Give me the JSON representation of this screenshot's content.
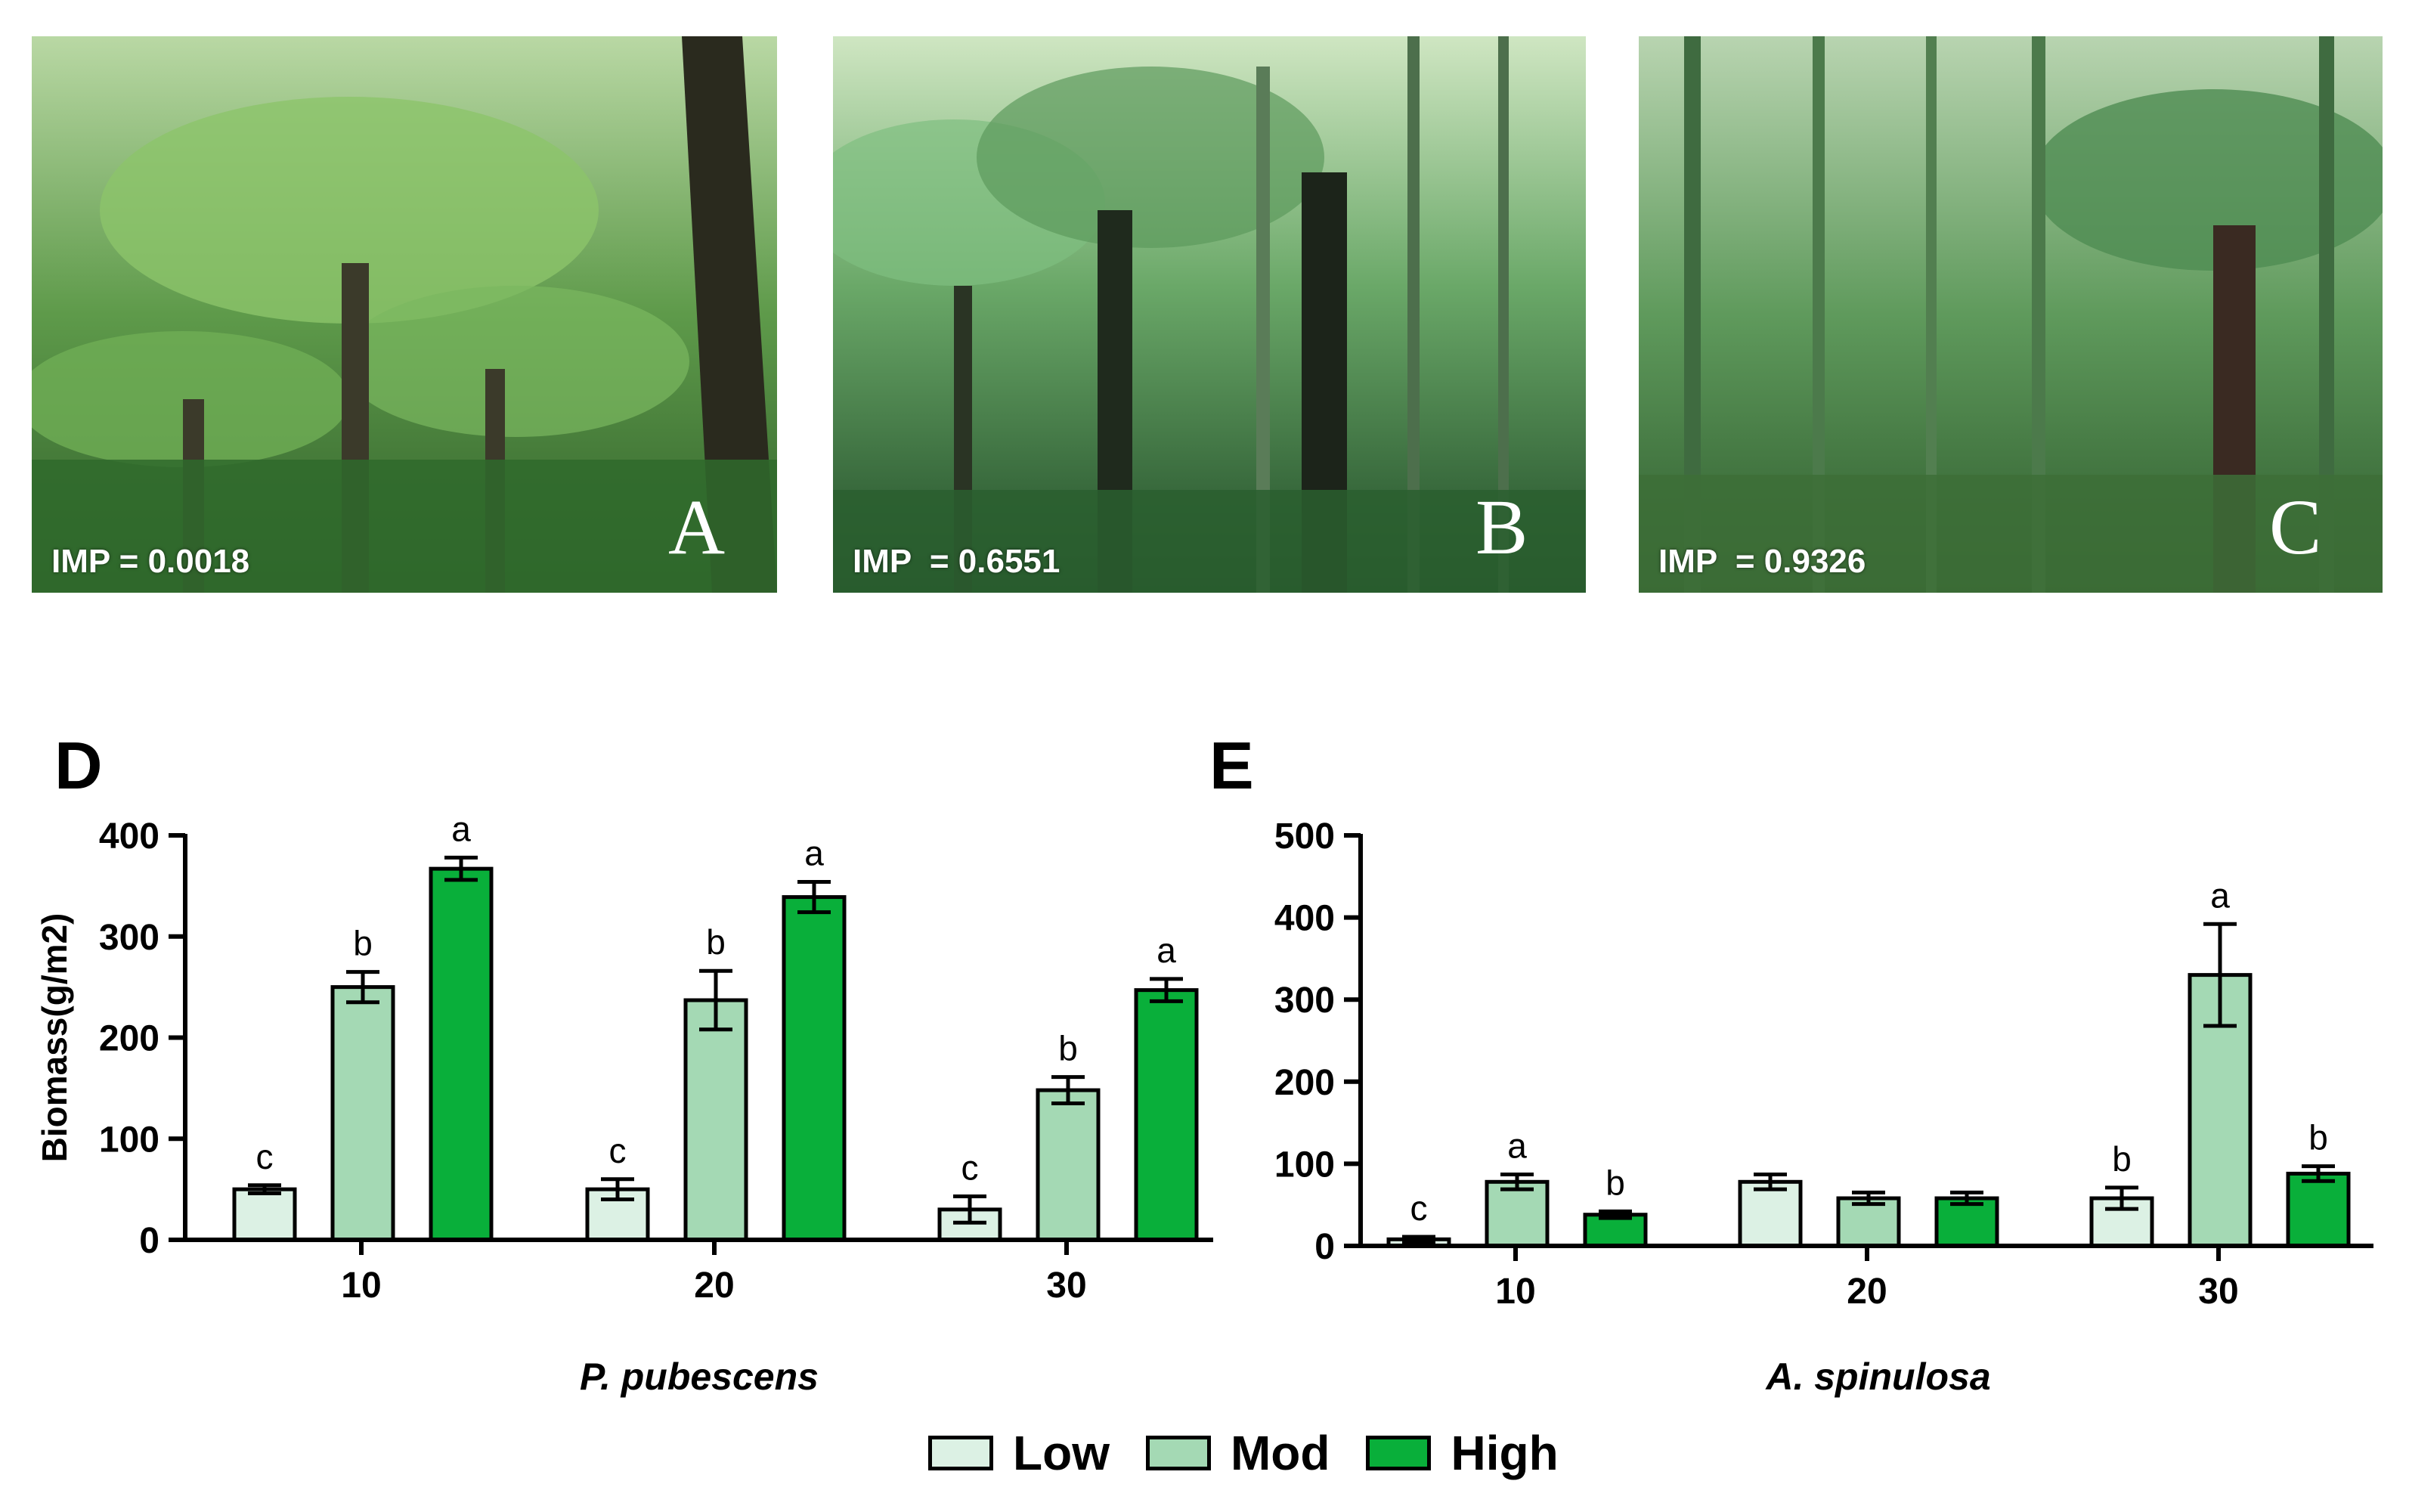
{
  "photos": [
    {
      "letter": "A",
      "imp": "IMP = 0.0018"
    },
    {
      "letter": "B",
      "imp": "IMP  = 0.6551"
    },
    {
      "letter": "C",
      "imp": "IMP  = 0.9326"
    }
  ],
  "panels": {
    "d": "D",
    "e": "E"
  },
  "colors": {
    "Low": "#dcf1e4",
    "Mod": "#a4d9b4",
    "High": "#09af3a"
  },
  "legend": [
    "Low",
    "Mod",
    "High"
  ],
  "chart_data": [
    {
      "type": "bar",
      "panel": "D",
      "categories": [
        "10",
        "20",
        "30"
      ],
      "xlabel": "P. pubescens",
      "ylabel": "Biomass(g/m2)",
      "ylim": [
        0,
        400
      ],
      "yticks": [
        0,
        100,
        200,
        300,
        400
      ],
      "series": [
        {
          "name": "Low",
          "values": [
            50,
            50,
            30
          ],
          "errors": [
            4,
            10,
            13
          ],
          "letters": [
            "c",
            "c",
            "c"
          ]
        },
        {
          "name": "Mod",
          "values": [
            250,
            237,
            148
          ],
          "errors": [
            15,
            29,
            13
          ],
          "letters": [
            "b",
            "b",
            "b"
          ]
        },
        {
          "name": "High",
          "values": [
            367,
            339,
            247
          ],
          "errors": [
            11,
            15,
            11
          ],
          "letters": [
            "a",
            "a",
            "a"
          ]
        }
      ]
    },
    {
      "type": "bar",
      "panel": "E",
      "categories": [
        "10",
        "20",
        "30"
      ],
      "xlabel": "A. spinulosa",
      "ylabel": "",
      "ylim": [
        0,
        500
      ],
      "yticks": [
        0,
        100,
        200,
        300,
        400,
        500
      ],
      "series": [
        {
          "name": "Low",
          "values": [
            8,
            78,
            58
          ],
          "errors": [
            3,
            9,
            13
          ],
          "letters": [
            "c",
            "",
            "b"
          ]
        },
        {
          "name": "Mod",
          "values": [
            78,
            58,
            330
          ],
          "errors": [
            9,
            7,
            62
          ],
          "letters": [
            "a",
            "",
            "a"
          ]
        },
        {
          "name": "High",
          "values": [
            38,
            58,
            88
          ],
          "errors": [
            4,
            7,
            9
          ],
          "letters": [
            "b",
            "",
            "b"
          ]
        }
      ]
    }
  ]
}
